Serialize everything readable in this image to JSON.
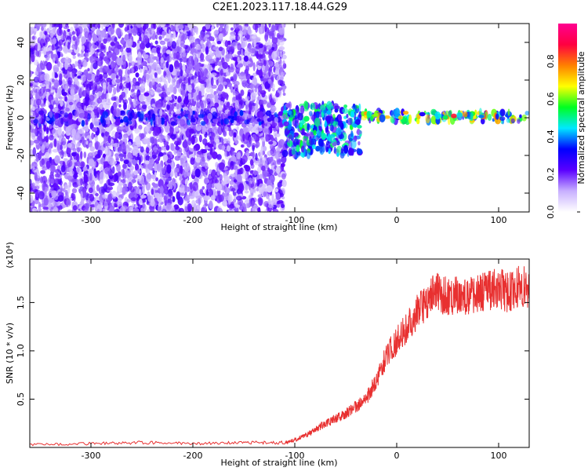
{
  "title": "C2E1.2023.117.18.44.G29",
  "chart_data": [
    {
      "type": "heatmap",
      "xlabel": "Height of straight line (km)",
      "ylabel": "Frequency (Hz)",
      "xlim": [
        -360,
        130
      ],
      "ylim": [
        -50,
        50
      ],
      "x_ticks": [
        -300,
        -200,
        -100,
        0,
        100
      ],
      "x_tick_labels": [
        "-300",
        "-200",
        "-100",
        "0",
        "100"
      ],
      "y_ticks": [
        -40,
        -20,
        0,
        20,
        40
      ],
      "y_tick_labels": [
        "-40",
        "-20",
        "0",
        "20",
        "40"
      ],
      "colorbar": {
        "label": "Normalized spectral amplitude",
        "range": [
          0,
          1
        ],
        "ticks": [
          0.0,
          0.2,
          0.4,
          0.6,
          0.8
        ],
        "tick_labels": [
          "0.0",
          "0.2",
          "0.4",
          "0.6",
          "0.8"
        ],
        "colors": [
          "#ffffff",
          "#c8b0ff",
          "#5a00ff",
          "#0000ff",
          "#00e8ff",
          "#00ff20",
          "#ffff00",
          "#ff8000",
          "#ff0040",
          "#ff0090"
        ]
      },
      "regions": [
        {
          "x_range": [
            -360,
            -110
          ],
          "y_range": [
            -50,
            50
          ],
          "amplitude": 0.2
        },
        {
          "x_range": [
            -360,
            -110
          ],
          "y_range": [
            -3,
            3
          ],
          "amplitude": 0.3
        },
        {
          "x_range": [
            -110,
            -35
          ],
          "y_range": [
            -20,
            7
          ],
          "amplitude": 0.45
        },
        {
          "x_range": [
            -35,
            130
          ],
          "y_range": [
            -2,
            3
          ],
          "amplitude": 0.6
        },
        {
          "x_range": [
            40,
            100
          ],
          "y_range": [
            0,
            2
          ],
          "amplitude": 0.85
        }
      ]
    },
    {
      "type": "line",
      "xlabel": "Height of straight line (km)",
      "ylabel": "SNR (10 * v/v)",
      "y_multiplier": "(x10⁴)",
      "xlim": [
        -360,
        130
      ],
      "ylim": [
        0,
        1.95
      ],
      "x_ticks": [
        -300,
        -200,
        -100,
        0,
        100
      ],
      "x_tick_labels": [
        "-300",
        "-200",
        "-100",
        "0",
        "100"
      ],
      "y_ticks": [
        0.5,
        1.0,
        1.5
      ],
      "y_tick_labels": [
        "0.5",
        "1.0",
        "1.5"
      ],
      "color": "#e83030",
      "x": [
        -360,
        -300,
        -250,
        -200,
        -150,
        -110,
        -100,
        -90,
        -80,
        -70,
        -60,
        -50,
        -40,
        -30,
        -20,
        -10,
        0,
        10,
        20,
        30,
        40,
        50,
        60,
        70,
        80,
        90,
        100,
        110,
        120,
        130
      ],
      "y": [
        0.03,
        0.04,
        0.05,
        0.04,
        0.05,
        0.05,
        0.08,
        0.12,
        0.18,
        0.25,
        0.3,
        0.35,
        0.42,
        0.5,
        0.7,
        0.95,
        1.1,
        1.25,
        1.4,
        1.52,
        1.62,
        1.55,
        1.6,
        1.55,
        1.58,
        1.62,
        1.65,
        1.6,
        1.68,
        1.65
      ]
    }
  ]
}
